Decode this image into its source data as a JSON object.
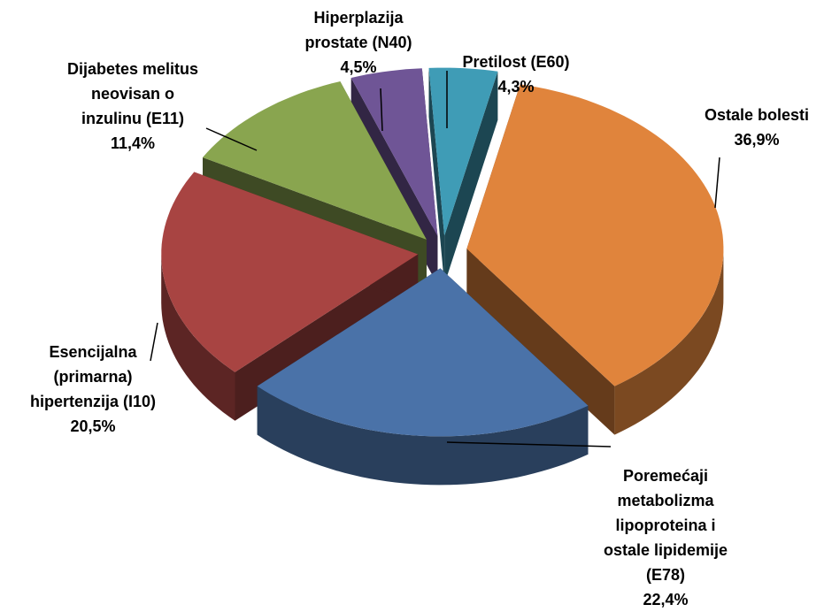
{
  "chart_data": {
    "type": "pie",
    "categories": [
      "Ostale bolesti",
      "Poremećaji metabolizma lipoproteina i ostale lipidemije (E78)",
      "Esencijalna (primarna) hipertenzija (I10)",
      "Dijabetes melitus neovisan o inzulinu (E11)",
      "Hiperplazija prostate (N40)",
      "Pretilost (E60)"
    ],
    "values": [
      36.9,
      22.4,
      20.5,
      11.4,
      4.5,
      4.3
    ],
    "value_labels": [
      "36,9%",
      "22,4%",
      "20,5%",
      "11,4%",
      "4,5%",
      "4,3%"
    ],
    "colors": [
      "#e0843c",
      "#4a72a8",
      "#a84442",
      "#89a54f",
      "#6f5596",
      "#3f9cb6"
    ]
  }
}
